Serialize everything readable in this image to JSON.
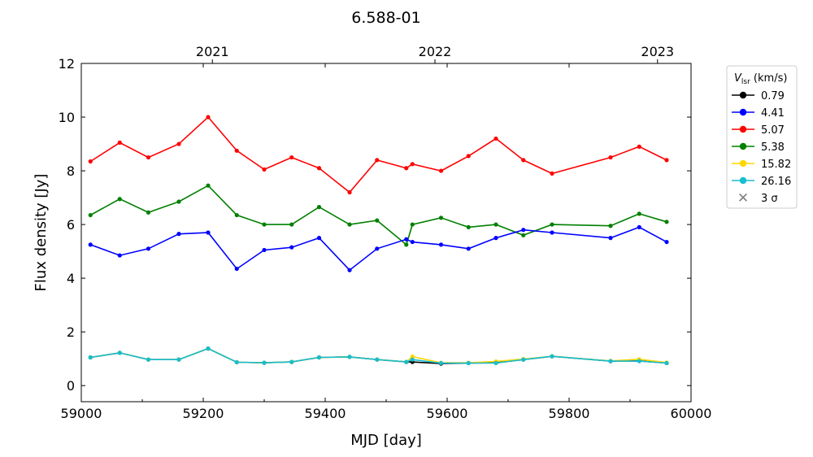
{
  "chart_data": {
    "type": "line",
    "title": "6.588-01",
    "xlabel": "MJD [day]",
    "ylabel": "Flux density [Jy]",
    "xlim": [
      59000,
      60000
    ],
    "ylim": [
      -0.6,
      12
    ],
    "xticks": [
      59000,
      59200,
      59400,
      59600,
      59800,
      60000
    ],
    "yticks": [
      0,
      2,
      4,
      6,
      8,
      10,
      12
    ],
    "top_axis": {
      "ticks": [
        {
          "label": "2021",
          "mjd": 59215
        },
        {
          "label": "2022",
          "mjd": 59580
        },
        {
          "label": "2023",
          "mjd": 59945
        }
      ]
    },
    "grid": false,
    "legend": {
      "position": "outside-right",
      "title_main": "V",
      "title_sub": "lsr",
      "title_unit": " (km/s)",
      "sigma_label": "3 σ"
    },
    "series": [
      {
        "name": "5.07",
        "color": "#ff0000",
        "x": [
          59015,
          59063,
          59110,
          59160,
          59208,
          59255,
          59300,
          59345,
          59390,
          59440,
          59485,
          59533,
          59543,
          59590,
          59635,
          59680,
          59725,
          59772,
          59868,
          59915,
          59960
        ],
        "y": [
          8.35,
          9.05,
          8.5,
          9.0,
          10.0,
          8.75,
          8.05,
          8.5,
          8.1,
          7.2,
          8.4,
          8.1,
          8.25,
          8.0,
          8.55,
          9.2,
          8.4,
          7.9,
          8.5,
          8.9,
          8.4
        ]
      },
      {
        "name": "5.38",
        "color": "#008000",
        "x": [
          59015,
          59063,
          59110,
          59160,
          59208,
          59255,
          59300,
          59345,
          59390,
          59440,
          59485,
          59533,
          59543,
          59590,
          59635,
          59680,
          59725,
          59772,
          59868,
          59915,
          59960
        ],
        "y": [
          6.35,
          6.95,
          6.45,
          6.85,
          7.45,
          6.35,
          6.0,
          6.0,
          6.65,
          6.0,
          6.15,
          5.25,
          6.0,
          6.25,
          5.9,
          6.0,
          5.6,
          6.0,
          5.95,
          6.4,
          6.1
        ]
      },
      {
        "name": "4.41",
        "color": "#0000ff",
        "x": [
          59015,
          59063,
          59110,
          59160,
          59208,
          59255,
          59300,
          59345,
          59390,
          59440,
          59485,
          59533,
          59543,
          59590,
          59635,
          59680,
          59725,
          59772,
          59868,
          59915,
          59960
        ],
        "y": [
          5.25,
          4.85,
          5.1,
          5.65,
          5.7,
          4.35,
          5.05,
          5.15,
          5.5,
          4.3,
          5.1,
          5.45,
          5.35,
          5.25,
          5.1,
          5.5,
          5.8,
          5.7,
          5.5,
          5.9,
          5.35
        ]
      },
      {
        "name": "0.79",
        "color": "#000000",
        "x": [
          59015,
          59063,
          59110,
          59160,
          59208,
          59255,
          59300,
          59345,
          59390,
          59440,
          59485,
          59533,
          59543,
          59590,
          59635,
          59680,
          59725,
          59772,
          59868,
          59915,
          59960
        ],
        "y": [
          1.05,
          1.22,
          0.97,
          0.97,
          1.38,
          0.87,
          0.85,
          0.88,
          1.05,
          1.07,
          0.97,
          0.88,
          0.88,
          0.82,
          0.84,
          0.85,
          0.97,
          1.09,
          0.91,
          0.92,
          0.84
        ]
      },
      {
        "name": "15.82",
        "color": "#ffd700",
        "x": [
          59015,
          59063,
          59110,
          59160,
          59208,
          59255,
          59300,
          59345,
          59390,
          59440,
          59485,
          59533,
          59543,
          59590,
          59635,
          59680,
          59725,
          59772,
          59868,
          59915,
          59960
        ],
        "y": [
          1.05,
          1.22,
          0.97,
          0.97,
          1.38,
          0.87,
          0.85,
          0.88,
          1.05,
          1.07,
          0.97,
          0.88,
          1.08,
          0.85,
          0.85,
          0.9,
          0.99,
          1.09,
          0.92,
          0.98,
          0.86
        ]
      },
      {
        "name": "26.16",
        "color": "#17becf",
        "x": [
          59015,
          59063,
          59110,
          59160,
          59208,
          59255,
          59300,
          59345,
          59390,
          59440,
          59485,
          59533,
          59543,
          59590,
          59635,
          59680,
          59725,
          59772,
          59868,
          59915,
          59960
        ],
        "y": [
          1.05,
          1.22,
          0.97,
          0.97,
          1.38,
          0.87,
          0.85,
          0.88,
          1.05,
          1.07,
          0.97,
          0.88,
          0.97,
          0.84,
          0.84,
          0.84,
          0.97,
          1.09,
          0.91,
          0.91,
          0.84
        ]
      }
    ]
  }
}
